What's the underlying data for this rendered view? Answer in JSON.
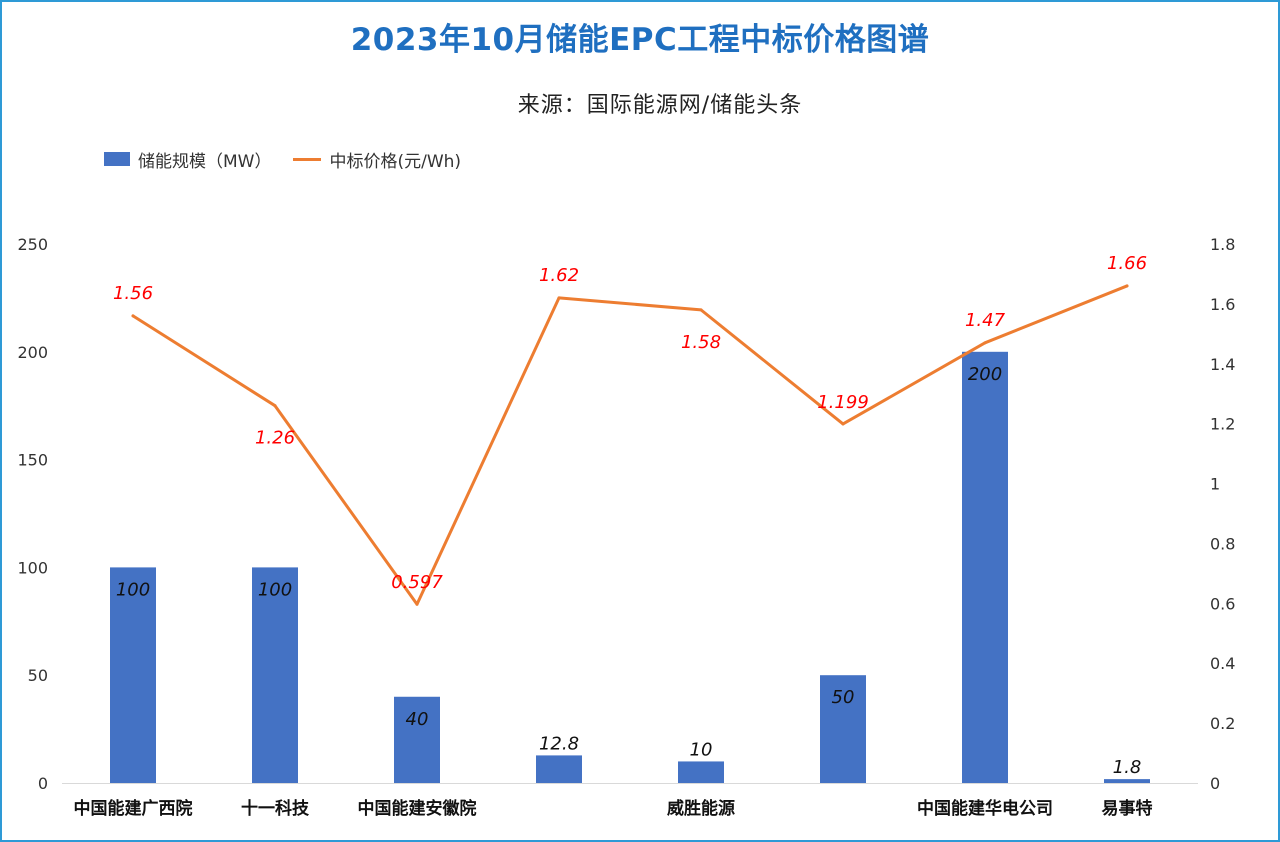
{
  "chart_data": {
    "type": "bar",
    "title": "2023年10月储能EPC工程中标价格图谱",
    "subtitle": "来源：国际能源网/储能头条",
    "categories": [
      "中国能建广西院",
      "十一科技",
      "中国能建安徽院",
      "",
      "威胜能源",
      "",
      "中国能建华电公司",
      "易事特"
    ],
    "series": [
      {
        "name": "储能规模（MW）",
        "type": "bar",
        "axis": "left",
        "color": "#4472c4",
        "values": [
          100,
          100,
          40,
          12.8,
          10,
          50,
          200,
          1.8
        ],
        "labels": [
          "100",
          "100",
          "40",
          "12.8",
          "10",
          "50",
          "200",
          "1.8"
        ]
      },
      {
        "name": "中标价格(元/Wh)",
        "type": "line",
        "axis": "right",
        "color": "#ed7d31",
        "values": [
          1.56,
          1.26,
          0.597,
          1.62,
          1.58,
          1.199,
          1.47,
          1.66
        ],
        "labels": [
          "1.56",
          "1.26",
          "0.597",
          "1.62",
          "1.58",
          "1.199",
          "1.47",
          "1.66"
        ]
      }
    ],
    "y_left": {
      "range": [
        0,
        250
      ],
      "ticks": [
        0,
        50,
        100,
        150,
        200,
        250
      ],
      "tick_labels": [
        "0",
        "50",
        "100",
        "150",
        "200",
        "250"
      ]
    },
    "y_right": {
      "range": [
        0,
        1.8
      ],
      "ticks": [
        0,
        0.2,
        0.4,
        0.6,
        0.8,
        1,
        1.2,
        1.4,
        1.6,
        1.8
      ],
      "tick_labels": [
        "0",
        "0.2",
        "0.4",
        "0.6",
        "0.8",
        "1",
        "1.2",
        "1.4",
        "1.6",
        "1.8"
      ]
    },
    "grid": false,
    "legend_position": "top-left",
    "label_color": "#ff0000",
    "border_color": "#2e9ad6",
    "title_color": "#1f6fc0"
  }
}
